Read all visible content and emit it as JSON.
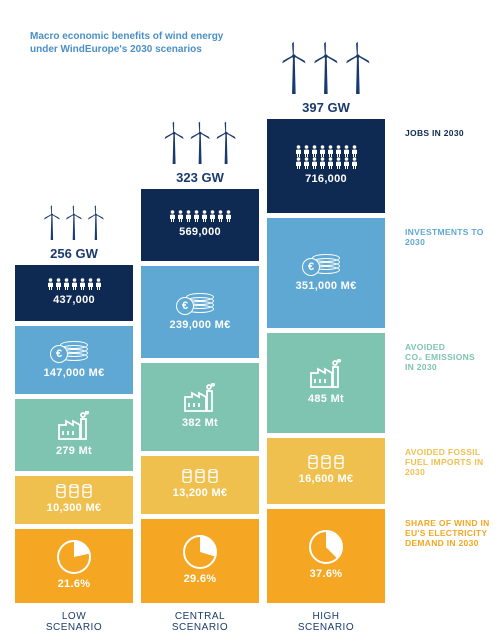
{
  "title": "Macro economic benefits of wind energy under WindEurope's 2030 scenarios",
  "colors": {
    "title": "#4a8fc7",
    "navy": "#1a3a6e",
    "jobs_bg": "#0f2a52",
    "invest_bg": "#5fa8d3",
    "co2_bg": "#7fc4b0",
    "fossil_bg": "#f0c04f",
    "pie_bg": "#f5a623",
    "legend_jobs": "#0f2a52",
    "legend_invest": "#5fa8d3",
    "legend_co2": "#7fc4b0",
    "legend_fossil": "#f0c04f",
    "legend_pie": "#f5a623"
  },
  "scenarios": [
    {
      "name": "LOW SCENARIO",
      "capacity": "256 GW",
      "jobs": "437,000",
      "jobs_height": 56,
      "jobs_people": 7,
      "investments": "147,000 M€",
      "invest_height": 68,
      "co2": "279 Mt",
      "co2_height": 72,
      "fossil": "10,300 M€",
      "fossil_height": 48,
      "pie": "21.6%",
      "pie_pct": 21.6,
      "pie_height": 74
    },
    {
      "name": "CENTRAL SCENARIO",
      "capacity": "323 GW",
      "jobs": "569,000",
      "jobs_height": 72,
      "jobs_people": 8,
      "investments": "239,000 M€",
      "invest_height": 92,
      "co2": "382 Mt",
      "co2_height": 88,
      "fossil": "13,200 M€",
      "fossil_height": 58,
      "pie": "29.6%",
      "pie_pct": 29.6,
      "pie_height": 84
    },
    {
      "name": "HIGH SCENARIO",
      "capacity": "397 GW",
      "jobs": "716,000",
      "jobs_height": 94,
      "jobs_people": 16,
      "investments": "351,000 M€",
      "invest_height": 110,
      "co2": "485 Mt",
      "co2_height": 100,
      "fossil": "16,600 M€",
      "fossil_height": 66,
      "pie": "37.6%",
      "pie_pct": 37.6,
      "pie_height": 94
    }
  ],
  "legends": {
    "jobs": "JOBS IN 2030",
    "invest": "INVESTMENTS TO 2030",
    "co2_l1": "AVOIDED",
    "co2_l2": "CO₂ EMISSIONS",
    "co2_l3": "IN 2030",
    "fossil": "AVOIDED FOSSIL FUEL IMPORTS IN 2030",
    "pie": "SHARE OF WIND IN EU'S ELECTRICITY DEMAND IN 2030"
  },
  "turbine_svg_color": "#1a3a6e",
  "icon_stroke": "#ffffff"
}
